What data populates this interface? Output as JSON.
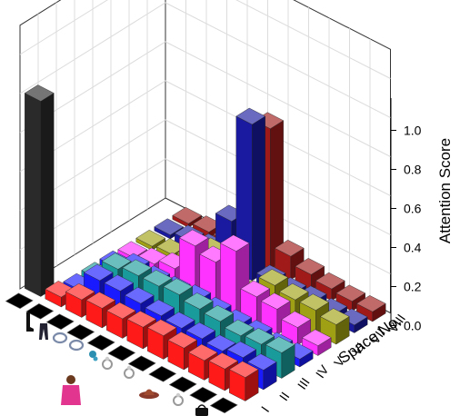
{
  "chart_data": {
    "type": "bar3d",
    "zlabel": "Attention Score",
    "ylabel": "Space No.",
    "zlim": [
      0,
      1.0
    ],
    "z_ticks": [
      "0.0",
      "0.2",
      "0.4",
      "0.6",
      "0.8",
      "1.0"
    ],
    "space_labels": [
      "I",
      "II",
      "III",
      "IV",
      "V",
      "VI",
      "VII",
      "VIII"
    ],
    "grid": true,
    "category_icons": [
      "boots-icon",
      "trousers-icon",
      "bracelet-icon",
      "bracelet-icon",
      "earring-icon",
      "ring-icon",
      "ring-icon",
      "woman-photo-icon",
      "hat-icon",
      "ring-icon",
      "handbag-icon"
    ],
    "series": [
      {
        "color": "#ff1a1a",
        "values": [
          0.05,
          0.09,
          0.1,
          0.1,
          0.11,
          0.12,
          0.11,
          0.1,
          0.11,
          0.12,
          0.11
        ]
      },
      {
        "color": "#1a1aff",
        "values": [
          0.03,
          0.13,
          0.13,
          0.12,
          0.11,
          0.1,
          0.1,
          0.09,
          0.11,
          0.1,
          0.13
        ]
      },
      {
        "color": "#1a9b9b",
        "values": [
          0.03,
          0.13,
          0.15,
          0.15,
          0.16,
          0.14,
          0.13,
          0.11,
          0.12,
          0.13,
          0.13
        ]
      },
      {
        "color": "#1a1aff",
        "values": [
          0.03,
          0.07,
          0.06,
          0.06,
          0.07,
          0.06,
          0.05,
          0.05,
          0.04,
          0.04,
          0.02
        ]
      },
      {
        "color": "#ff33ff",
        "values": [
          0.02,
          0.04,
          0.07,
          0.24,
          0.21,
          0.32,
          0.14,
          0.13,
          0.09,
          0.05,
          0.02
        ]
      },
      {
        "color": "#a0a014",
        "values": [
          0.02,
          0.03,
          0.05,
          0.14,
          0.12,
          0.03,
          0.14,
          0.12,
          0.12,
          0.1,
          0.05
        ]
      },
      {
        "color": "#1a1aa0",
        "values": [
          0.02,
          0.04,
          0.05,
          0.25,
          0.8,
          0.05,
          0.04,
          0.05,
          0.04,
          0.04,
          0.03
        ]
      },
      {
        "color": "#a01a1a",
        "values": [
          0.02,
          0.03,
          0.03,
          0.04,
          0.72,
          0.12,
          0.08,
          0.06,
          0.05,
          0.05,
          0.04
        ]
      }
    ],
    "first_category": {
      "color": "#2a2a2a",
      "values": [
        1.0,
        0.0,
        0.0,
        0.0,
        0.0,
        0.0,
        0.0,
        0.0
      ]
    }
  }
}
